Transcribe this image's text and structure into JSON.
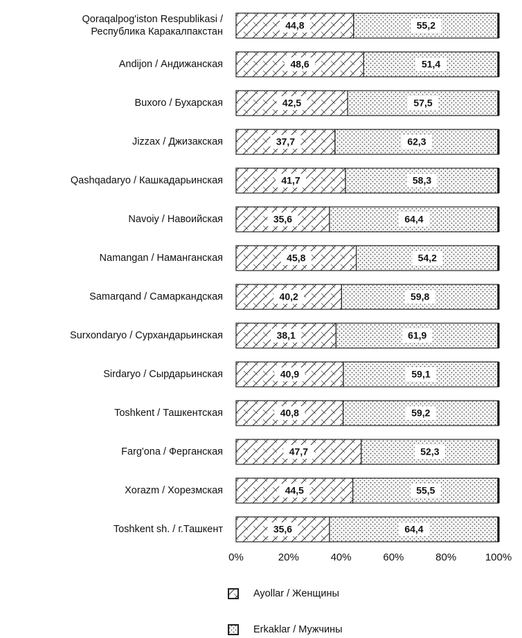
{
  "chart_data": {
    "type": "stacked_barh",
    "categories": [
      "Qoraqalpog'iston Respublikasi /\nРеспублика Каракалпакстан",
      "Andijon / Андижанская",
      "Buxoro / Бухарская",
      "Jizzax / Джизакская",
      "Qashqadaryo / Кашкадарьинская",
      "Navoiy / Навоийская",
      "Namangan / Наманганская",
      "Samarqand / Самаркандская",
      "Surxondaryo / Сурхандарьинская",
      "Sirdaryo / Сырдарьинская",
      "Toshkent / Ташкентская",
      "Farg'ona / Ферганская",
      "Xorazm / Хорезмская",
      "Toshkent sh. / г.Ташкент"
    ],
    "series": [
      {
        "name": "Ayollar / Женщины",
        "color": "#222222",
        "pattern": "hatch",
        "values": [
          44.8,
          48.6,
          42.5,
          37.7,
          41.7,
          35.6,
          45.8,
          40.2,
          38.1,
          40.9,
          40.8,
          47.7,
          44.5,
          35.6
        ],
        "value_labels": [
          "44,8",
          "48,6",
          "42,5",
          "37,7",
          "41,7",
          "35,6",
          "45,8",
          "40,2",
          "38,1",
          "40,9",
          "40,8",
          "47,7",
          "44,5",
          "35,6"
        ]
      },
      {
        "name": "Erkaklar / Мужчины",
        "color": "#222222",
        "pattern": "dots",
        "values": [
          55.2,
          51.4,
          57.5,
          62.3,
          58.3,
          64.4,
          54.2,
          59.8,
          61.9,
          59.1,
          59.2,
          52.3,
          55.5,
          64.4
        ],
        "value_labels": [
          "55,2",
          "51,4",
          "57,5",
          "62,3",
          "58,3",
          "64,4",
          "54,2",
          "59,8",
          "61,9",
          "59,1",
          "59,2",
          "52,3",
          "55,5",
          "64,4"
        ]
      }
    ],
    "xlim": [
      0,
      100
    ],
    "xticks": [
      {
        "value": 0,
        "label": "0%"
      },
      {
        "value": 20,
        "label": "20%"
      },
      {
        "value": 40,
        "label": "40%"
      },
      {
        "value": 60,
        "label": "60%"
      },
      {
        "value": 80,
        "label": "80%"
      },
      {
        "value": 100,
        "label": "100%"
      }
    ],
    "legend": "bottom"
  }
}
